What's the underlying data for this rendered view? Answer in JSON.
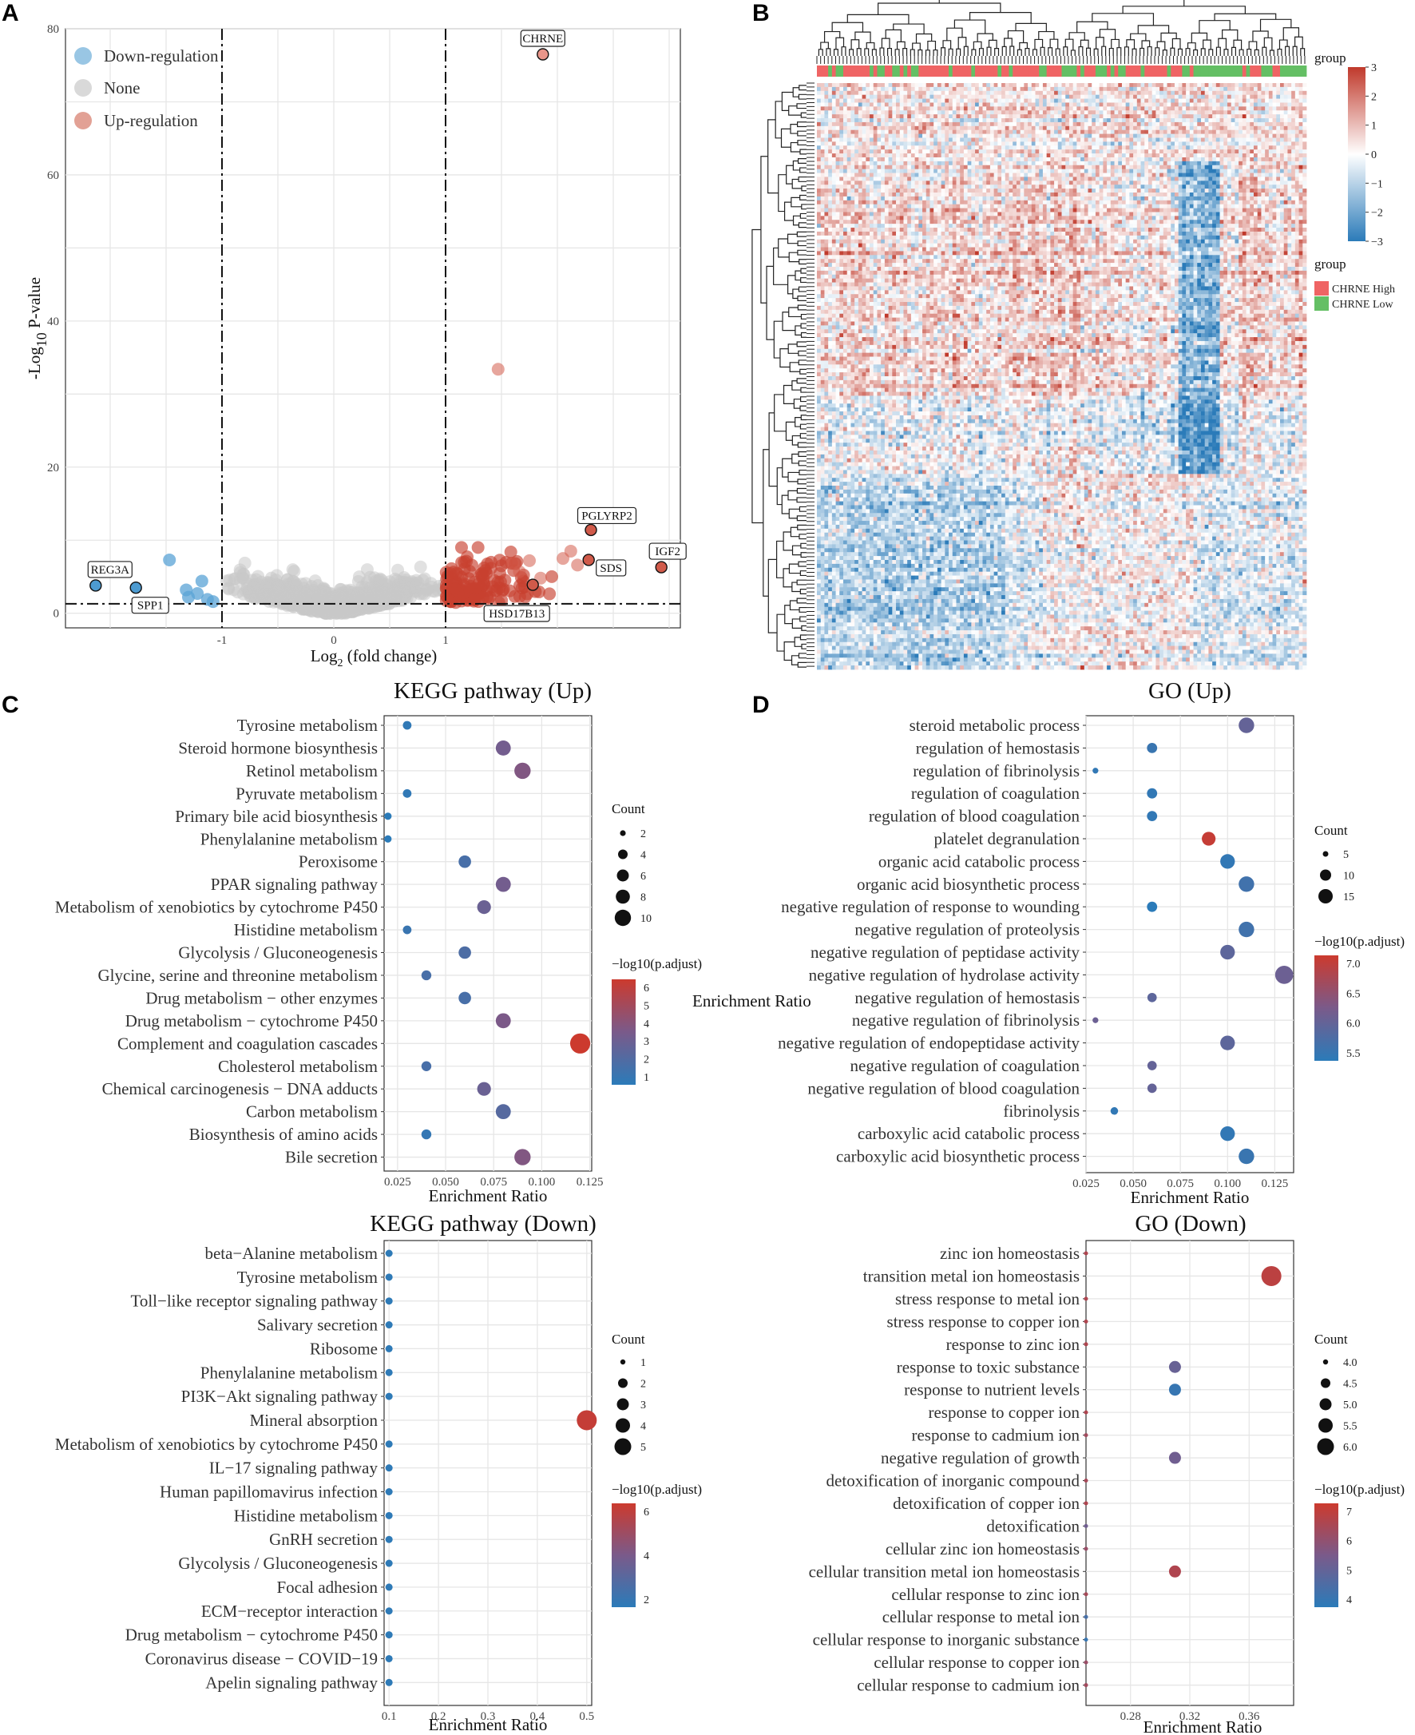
{
  "panels": [
    "A",
    "B",
    "C",
    "D"
  ],
  "colors": {
    "down": "#7fb8dd",
    "none": "#cfcfcf",
    "up": "#d97b6c",
    "up_dark": "#c0392b",
    "down_dark": "#2f7bbf",
    "high": "#ef6464",
    "low": "#64bf64",
    "low_grad": "#2b7bb9",
    "high_grad": "#cc3a2e",
    "heat_low": "#2b7bb9",
    "heat_high": "#c0392b"
  },
  "chart_data": [
    {
      "id": "volcano",
      "type": "scatter",
      "xlabel_main": "Log",
      "xlabel_sub": "2",
      "xlabel_rest": " (fold change)",
      "ylabel_main": "-Log",
      "ylabel_sub": "10",
      "ylabel_rest": " P-value",
      "xlim": [
        -2.4,
        3.1
      ],
      "ylim": [
        -2,
        80
      ],
      "xticks": [
        -1,
        0,
        1
      ],
      "yticks": [
        0,
        20,
        40,
        60,
        80
      ],
      "thresholds": {
        "x": [
          -1,
          1
        ],
        "y": 1.3
      },
      "legend": [
        "Down-regulation",
        "None",
        "Up-regulation"
      ],
      "labeled_points": [
        {
          "name": "CHRNE",
          "x": 1.87,
          "y": 76.5
        },
        {
          "name": "PGLYRP2",
          "x": 2.3,
          "y": 11.4
        },
        {
          "name": "IGF2",
          "x": 2.93,
          "y": 6.3
        },
        {
          "name": "SDS",
          "x": 2.28,
          "y": 7.3
        },
        {
          "name": "HSD17B13",
          "x": 1.78,
          "y": 3.9
        },
        {
          "name": "REG3A",
          "x": -2.13,
          "y": 3.8
        },
        {
          "name": "SPP1",
          "x": -1.77,
          "y": 3.5
        }
      ],
      "down_points": [
        [
          -1.47,
          7.3
        ],
        [
          -1.32,
          3.2
        ],
        [
          -1.18,
          4.4
        ],
        [
          -1.22,
          2.7
        ],
        [
          -1.13,
          1.9
        ],
        [
          -1.08,
          1.6
        ],
        [
          -1.3,
          2.2
        ]
      ],
      "up_points": [
        [
          1.47,
          33.4
        ],
        [
          1.6,
          6.8
        ],
        [
          1.75,
          7.2
        ],
        [
          2.05,
          7.5
        ],
        [
          2.18,
          6.6
        ],
        [
          2.12,
          8.5
        ],
        [
          1.66,
          5.7
        ],
        [
          1.85,
          4.8
        ]
      ]
    },
    {
      "id": "heatmap",
      "type": "heatmap",
      "color_legend_title": "group",
      "color_ticks": [
        "3",
        "2",
        "1",
        "0",
        "−1",
        "−2",
        "−3"
      ],
      "group_legend_title": "group",
      "groups": [
        "CHRNE High",
        "CHRNE Low"
      ]
    },
    {
      "id": "kegg_up",
      "type": "scatter",
      "title": "KEGG pathway (Up)",
      "xlabel": "Enrichment Ratio",
      "xlim": [
        0.018,
        0.126
      ],
      "xticks": [
        "0.025",
        "0.050",
        "0.075",
        "0.100",
        "0.125"
      ],
      "categories": [
        "Tyrosine metabolism",
        "Steroid hormone biosynthesis",
        "Retinol metabolism",
        "Pyruvate metabolism",
        "Primary bile acid biosynthesis",
        "Phenylalanine metabolism",
        "Peroxisome",
        "PPAR signaling pathway",
        "Metabolism of xenobiotics by cytochrome P450",
        "Histidine metabolism",
        "Glycolysis / Gluconeogenesis",
        "Glycine, serine and threonine metabolism",
        "Drug metabolism − other enzymes",
        "Drug metabolism − cytochrome P450",
        "Complement and coagulation cascades",
        "Cholesterol metabolism",
        "Chemical carcinogenesis − DNA adducts",
        "Carbon metabolism",
        "Biosynthesis of amino acids",
        "Bile secretion"
      ],
      "x": [
        0.03,
        0.08,
        0.09,
        0.03,
        0.02,
        0.02,
        0.06,
        0.08,
        0.07,
        0.03,
        0.06,
        0.04,
        0.06,
        0.08,
        0.12,
        0.04,
        0.07,
        0.08,
        0.04,
        0.09
      ],
      "count": [
        3,
        8,
        9,
        3,
        2,
        2,
        6,
        8,
        7,
        3,
        6,
        4,
        6,
        8,
        12,
        4,
        7,
        8,
        4,
        9
      ],
      "color_value": [
        1.2,
        3.5,
        4.0,
        1.2,
        1.0,
        1.0,
        2.0,
        3.5,
        3.2,
        1.5,
        2.2,
        2.0,
        2.0,
        3.8,
        6.5,
        2.0,
        3.2,
        2.5,
        1.3,
        4.0
      ],
      "size_legend_title": "Count",
      "size_legend": [
        "2",
        "4",
        "6",
        "8",
        "10"
      ],
      "color_legend_title": "−log10(p.adjust)",
      "color_legend": [
        "6",
        "5",
        "4",
        "3",
        "2",
        "1"
      ],
      "color_range": [
        1,
        6.5
      ]
    },
    {
      "id": "go_up",
      "type": "scatter",
      "title": "GO (Up)",
      "xlabel": "Enrichment Ratio",
      "stray_label": "Enrichment Ratio",
      "xlim": [
        0.025,
        0.135
      ],
      "xticks": [
        "0.025",
        "0.050",
        "0.075",
        "0.100",
        "0.125"
      ],
      "categories": [
        "steroid metabolic process",
        "regulation of hemostasis",
        "regulation of fibrinolysis",
        "regulation of coagulation",
        "regulation of blood coagulation",
        "platelet degranulation",
        "organic acid catabolic process",
        "organic acid biosynthetic process",
        "negative regulation of response to wounding",
        "negative regulation of proteolysis",
        "negative regulation of peptidase activity",
        "negative regulation of hydrolase activity",
        "negative regulation of hemostasis",
        "negative regulation of fibrinolysis",
        "negative regulation of endopeptidase activity",
        "negative regulation of coagulation",
        "negative regulation of blood coagulation",
        "fibrinolysis",
        "carboxylic acid catabolic process",
        "carboxylic acid biosynthetic process"
      ],
      "x": [
        0.11,
        0.06,
        0.03,
        0.06,
        0.06,
        0.09,
        0.1,
        0.11,
        0.06,
        0.11,
        0.1,
        0.13,
        0.06,
        0.03,
        0.1,
        0.06,
        0.06,
        0.04,
        0.1,
        0.11
      ],
      "count": [
        14,
        8,
        3,
        8,
        8,
        12,
        13,
        14,
        8,
        14,
        13,
        17,
        7,
        3,
        13,
        7,
        7,
        5,
        13,
        14
      ],
      "color_value": [
        6.1,
        5.5,
        5.4,
        5.4,
        5.4,
        7.4,
        5.4,
        5.6,
        5.3,
        5.6,
        6.0,
        6.2,
        6.0,
        6.2,
        6.0,
        6.1,
        6.1,
        5.4,
        5.4,
        5.5
      ],
      "size_legend_title": "Count",
      "size_legend": [
        "5",
        "10",
        "15"
      ],
      "color_legend_title": "−log10(p.adjust)",
      "color_legend": [
        "7.0",
        "6.5",
        "6.0",
        "5.5"
      ],
      "color_range": [
        5.3,
        7.5
      ]
    },
    {
      "id": "kegg_down",
      "type": "scatter",
      "title": "KEGG pathway (Down)",
      "xlabel": "Enrichment Ratio",
      "xlim": [
        0.09,
        0.51
      ],
      "xticks": [
        "0.1",
        "0.2",
        "0.3",
        "0.4",
        "0.5"
      ],
      "categories": [
        "beta−Alanine metabolism",
        "Tyrosine metabolism",
        "Toll−like receptor signaling pathway",
        "Salivary secretion",
        "Ribosome",
        "Phenylalanine metabolism",
        "PI3K−Akt signaling pathway",
        "Mineral absorption",
        "Metabolism of xenobiotics by cytochrome P450",
        "IL−17 signaling pathway",
        "Human papillomavirus infection",
        "Histidine metabolism",
        "GnRH secretion",
        "Glycolysis / Gluconeogenesis",
        "Focal adhesion",
        "ECM−receptor interaction",
        "Drug metabolism − cytochrome P450",
        "Coronavirus disease − COVID−19",
        "Apelin signaling pathway"
      ],
      "x": [
        0.1,
        0.1,
        0.1,
        0.1,
        0.1,
        0.1,
        0.1,
        0.5,
        0.1,
        0.1,
        0.1,
        0.1,
        0.1,
        0.1,
        0.1,
        0.1,
        0.1,
        0.1,
        0.1
      ],
      "count": [
        1,
        1,
        1,
        1,
        1,
        1,
        1,
        5,
        1,
        1,
        1,
        1,
        1,
        1,
        1,
        1,
        1,
        1,
        1
      ],
      "color_value": [
        1.1,
        1.1,
        1.1,
        1.1,
        1.1,
        1.1,
        1.1,
        6.7,
        1.1,
        1.1,
        1.1,
        1.1,
        1.1,
        1.1,
        1.1,
        1.1,
        1.1,
        1.1,
        1.1
      ],
      "size_legend_title": "Count",
      "size_legend": [
        "1",
        "2",
        "3",
        "4",
        "5"
      ],
      "color_legend_title": "−log10(p.adjust)",
      "color_legend": [
        "6",
        "4",
        "2"
      ],
      "color_range": [
        1,
        7
      ]
    },
    {
      "id": "go_down",
      "type": "scatter",
      "title": "GO (Down)",
      "xlabel": "Enrichment Ratio",
      "xlim": [
        0.25,
        0.39
      ],
      "xticks": [
        "0.28",
        "0.32",
        "0.36"
      ],
      "categories": [
        "zinc ion homeostasis",
        "transition metal ion homeostasis",
        "stress response to metal ion",
        "stress response to copper ion",
        "response to zinc ion",
        "response to toxic substance",
        "response to nutrient levels",
        "response to copper ion",
        "response to cadmium ion",
        "negative regulation of growth",
        "detoxification of inorganic compound",
        "detoxification of copper ion",
        "detoxification",
        "cellular zinc ion homeostasis",
        "cellular transition metal ion homeostasis",
        "cellular response to zinc ion",
        "cellular response to metal ion",
        "cellular response to inorganic substance",
        "cellular response to copper ion",
        "cellular response to cadmium ion"
      ],
      "x": [
        0.25,
        0.375,
        0.25,
        0.25,
        0.25,
        0.31,
        0.31,
        0.25,
        0.25,
        0.31,
        0.25,
        0.25,
        0.25,
        0.25,
        0.31,
        0.25,
        0.25,
        0.25,
        0.25,
        0.25
      ],
      "count": [
        4,
        6,
        4,
        4,
        4,
        5,
        5,
        4,
        4,
        5,
        4,
        4,
        4,
        4,
        5,
        4,
        4,
        4,
        4,
        4
      ],
      "color_value": [
        6.5,
        6.8,
        6.5,
        6.5,
        6.5,
        4.8,
        3.6,
        6.5,
        6.2,
        5.0,
        6.3,
        6.5,
        5.0,
        6.0,
        6.5,
        6.3,
        4.0,
        3.6,
        6.0,
        6.2
      ],
      "size_legend_title": "Count",
      "size_legend": [
        "4.0",
        "4.5",
        "5.0",
        "5.5",
        "6.0"
      ],
      "color_legend_title": "−log10(p.adjust)",
      "color_legend": [
        "7",
        "6",
        "5",
        "4"
      ],
      "color_range": [
        3.3,
        7.2
      ]
    }
  ]
}
